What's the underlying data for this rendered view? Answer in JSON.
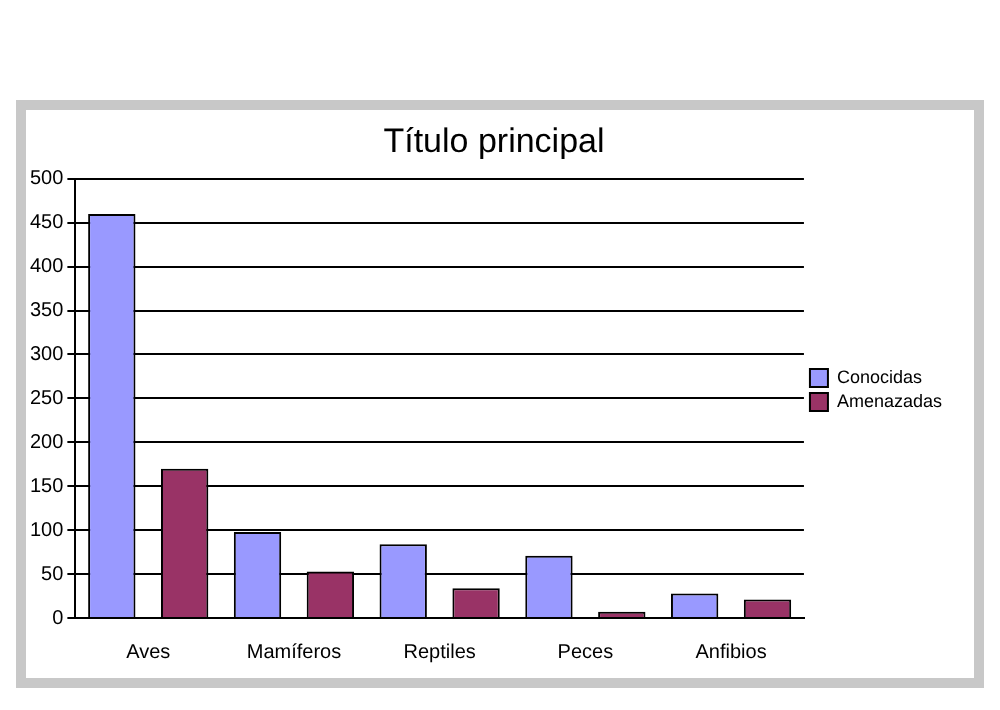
{
  "chart_data": {
    "type": "bar",
    "title": "Título principal",
    "categories": [
      "Aves",
      "Mamíferos",
      "Reptiles",
      "Peces",
      "Anfibios"
    ],
    "series": [
      {
        "name": "Conocidas",
        "color": "#9999ff",
        "values": [
          460,
          98,
          84,
          71,
          28
        ]
      },
      {
        "name": "Amenazadas",
        "color": "#993366",
        "values": [
          170,
          53,
          34,
          7,
          21
        ]
      }
    ],
    "ylim": [
      0,
      500
    ],
    "yticks": [
      0,
      50,
      100,
      150,
      200,
      250,
      300,
      350,
      400,
      450,
      500
    ],
    "grid": "y",
    "legend": "right"
  }
}
